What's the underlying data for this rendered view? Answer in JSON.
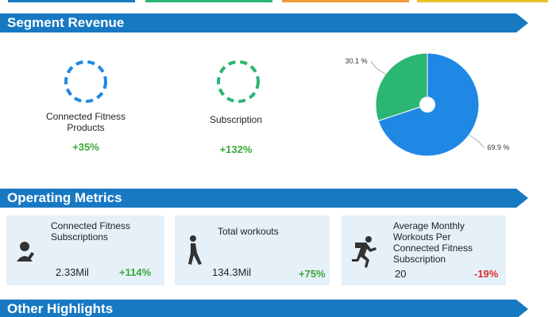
{
  "sections": [
    "Segment Revenue",
    "Operating Metrics",
    "Other Highlights"
  ],
  "segments": [
    {
      "name": "Connected Fitness Products",
      "change": "+35%"
    },
    {
      "name": "Subscription",
      "change": "+132%"
    }
  ],
  "chart_data": {
    "type": "pie",
    "values": [
      69.9,
      30.1
    ],
    "value_labels": [
      "69.9 %",
      "30.1 %"
    ],
    "colors": [
      "#1f88e5",
      "#2bb673"
    ]
  },
  "metrics": [
    {
      "label": "Connected Fitness Subscriptions",
      "value": "2.33Mil",
      "change": "+114%"
    },
    {
      "label": "Total workouts",
      "value": "134.3Mil",
      "change": "+75%"
    },
    {
      "label": "Average Monthly Workouts Per Connected Fitness Subscription",
      "value": "20",
      "change": "-19%"
    }
  ]
}
